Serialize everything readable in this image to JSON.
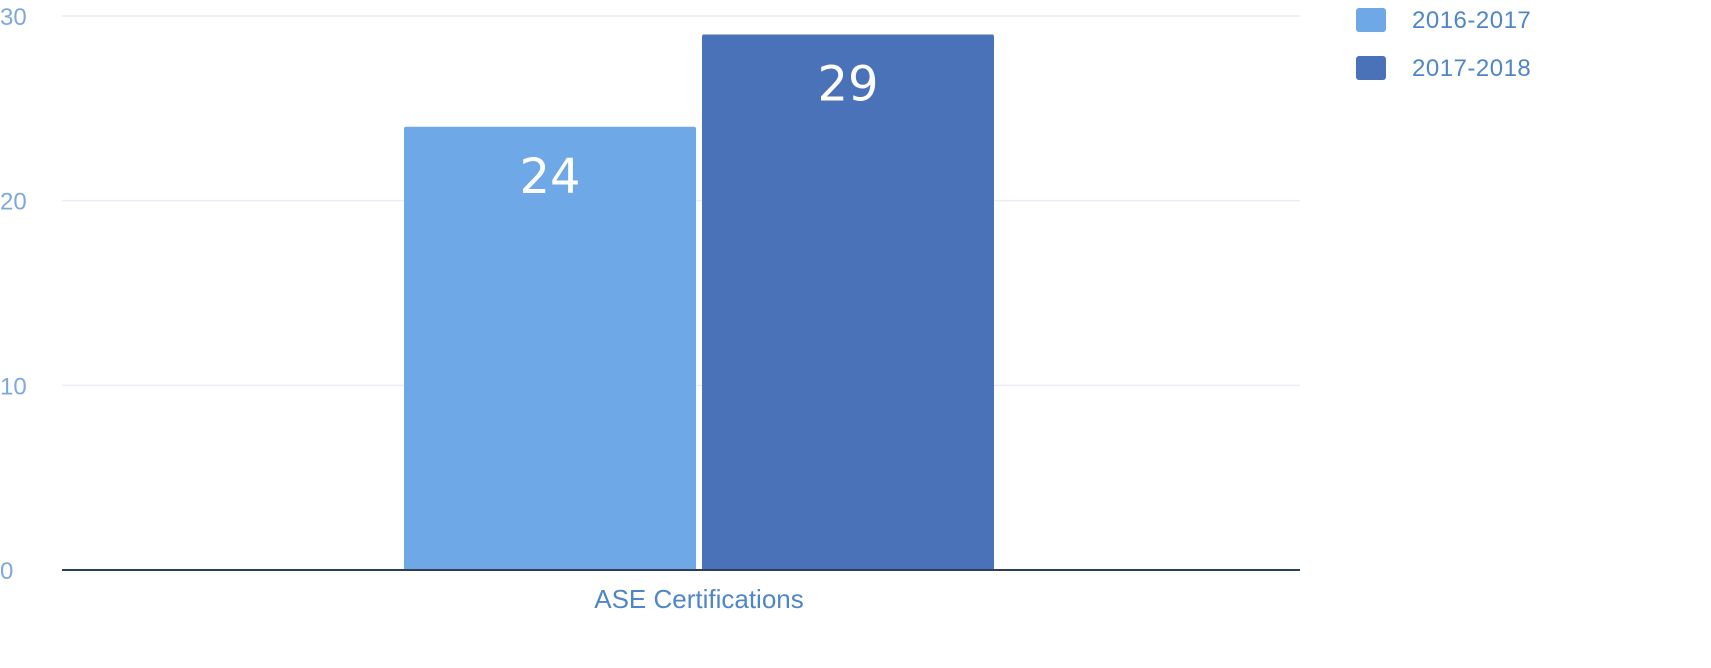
{
  "chart_data": {
    "type": "bar",
    "categories": [
      "ASE Certifications"
    ],
    "series": [
      {
        "name": "2016-2017",
        "values": [
          24
        ],
        "color": "#6fa8e6"
      },
      {
        "name": "2017-2018",
        "values": [
          29
        ],
        "color": "#4a72b8"
      }
    ],
    "title": "",
    "xlabel": "",
    "ylabel": "",
    "ylim": [
      0,
      30
    ],
    "yticks": [
      0,
      10,
      20,
      30
    ],
    "grid": true,
    "legend": "top-right",
    "data_labels": true
  }
}
